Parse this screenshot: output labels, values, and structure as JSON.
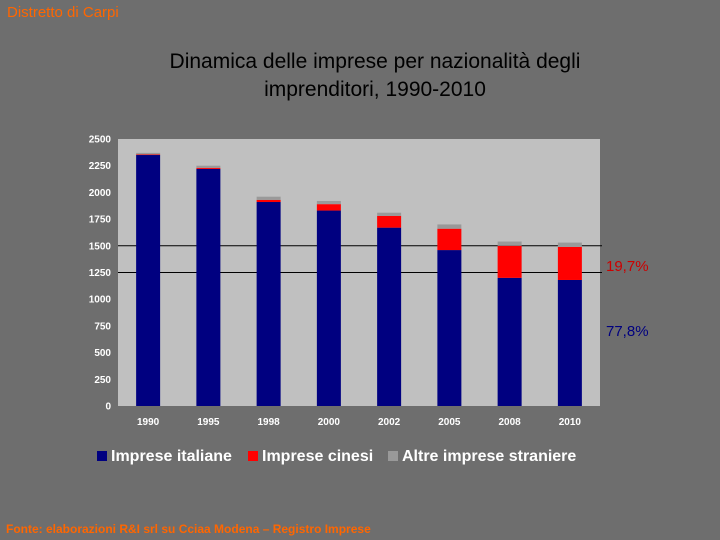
{
  "header": {
    "corner_label": "Distretto di Carpi",
    "title_line1": "Dinamica delle imprese per nazionalità degli",
    "title_line2": "imprenditori, 1990-2010"
  },
  "annotations": {
    "upper": "19,7%",
    "lower": "77,8%"
  },
  "footer": {
    "source": "Fonte: elaborazioni R&I srl su Cciaa Modena – Registro Imprese"
  },
  "colors": {
    "italiane": "#000080",
    "cinesi": "#ff0000",
    "altre": "#999999",
    "plot_bg": "#c0c0c0",
    "upper_annotation": "#cc0000",
    "lower_annotation": "#000080"
  },
  "chart_data": {
    "type": "bar",
    "stacked": true,
    "categories": [
      "1990",
      "1995",
      "1998",
      "2000",
      "2002",
      "2005",
      "2008",
      "2010"
    ],
    "series": [
      {
        "name": "Imprese italiane",
        "values": [
          2350,
          2220,
          1910,
          1830,
          1670,
          1460,
          1200,
          1180
        ]
      },
      {
        "name": "Imprese cinesi",
        "values": [
          5,
          10,
          20,
          60,
          110,
          200,
          300,
          310
        ]
      },
      {
        "name": "Altre imprese straniere",
        "values": [
          15,
          20,
          30,
          30,
          30,
          40,
          40,
          40
        ]
      }
    ],
    "ylim": [
      0,
      2500
    ],
    "yticks": [
      "0",
      "250",
      "500",
      "750",
      "1000",
      "1250",
      "1500",
      "1750",
      "2000",
      "2250",
      "2500"
    ],
    "reference_lines": [
      1500,
      1250
    ],
    "grid": false,
    "legend": "bottom"
  }
}
